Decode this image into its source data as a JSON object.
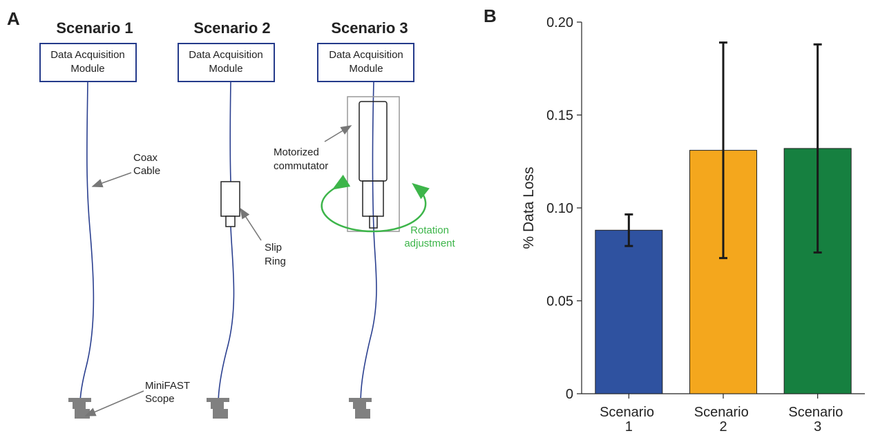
{
  "panel_a": {
    "label": "A",
    "scenarios": [
      {
        "title": "Scenario 1",
        "module": [
          "Data Acquisition",
          "Module"
        ]
      },
      {
        "title": "Scenario 2",
        "module": [
          "Data Acquisition",
          "Module"
        ]
      },
      {
        "title": "Scenario 3",
        "module": [
          "Data Acquisition",
          "Module"
        ]
      }
    ],
    "annotations": {
      "coax_cable": [
        "Coax",
        "Cable"
      ],
      "scope": [
        "MiniFAST",
        "Scope"
      ],
      "slip_ring": [
        "Slip",
        "Ring"
      ],
      "commutator": [
        "Motorized",
        "commutator"
      ],
      "rotation": [
        "Rotation",
        "adjustment"
      ]
    }
  },
  "chart_data": {
    "type": "bar",
    "panel_label": "B",
    "ylabel": "% Data Loss",
    "categories": [
      "Scenario 1",
      "Scenario 2",
      "Scenario 3"
    ],
    "series": [
      {
        "values": [
          0.088,
          0.131,
          0.132
        ],
        "errors": [
          0.0085,
          0.058,
          0.056
        ],
        "colors": [
          "#2f52a0",
          "#f4a71d",
          "#168040"
        ]
      }
    ],
    "ylim": [
      0,
      0.2
    ],
    "yticks": [
      0,
      0.05,
      {
        "value": 0.1,
        "label": "0.10"
      },
      0.15,
      {
        "value": 0.2,
        "label": "0.20"
      }
    ]
  }
}
